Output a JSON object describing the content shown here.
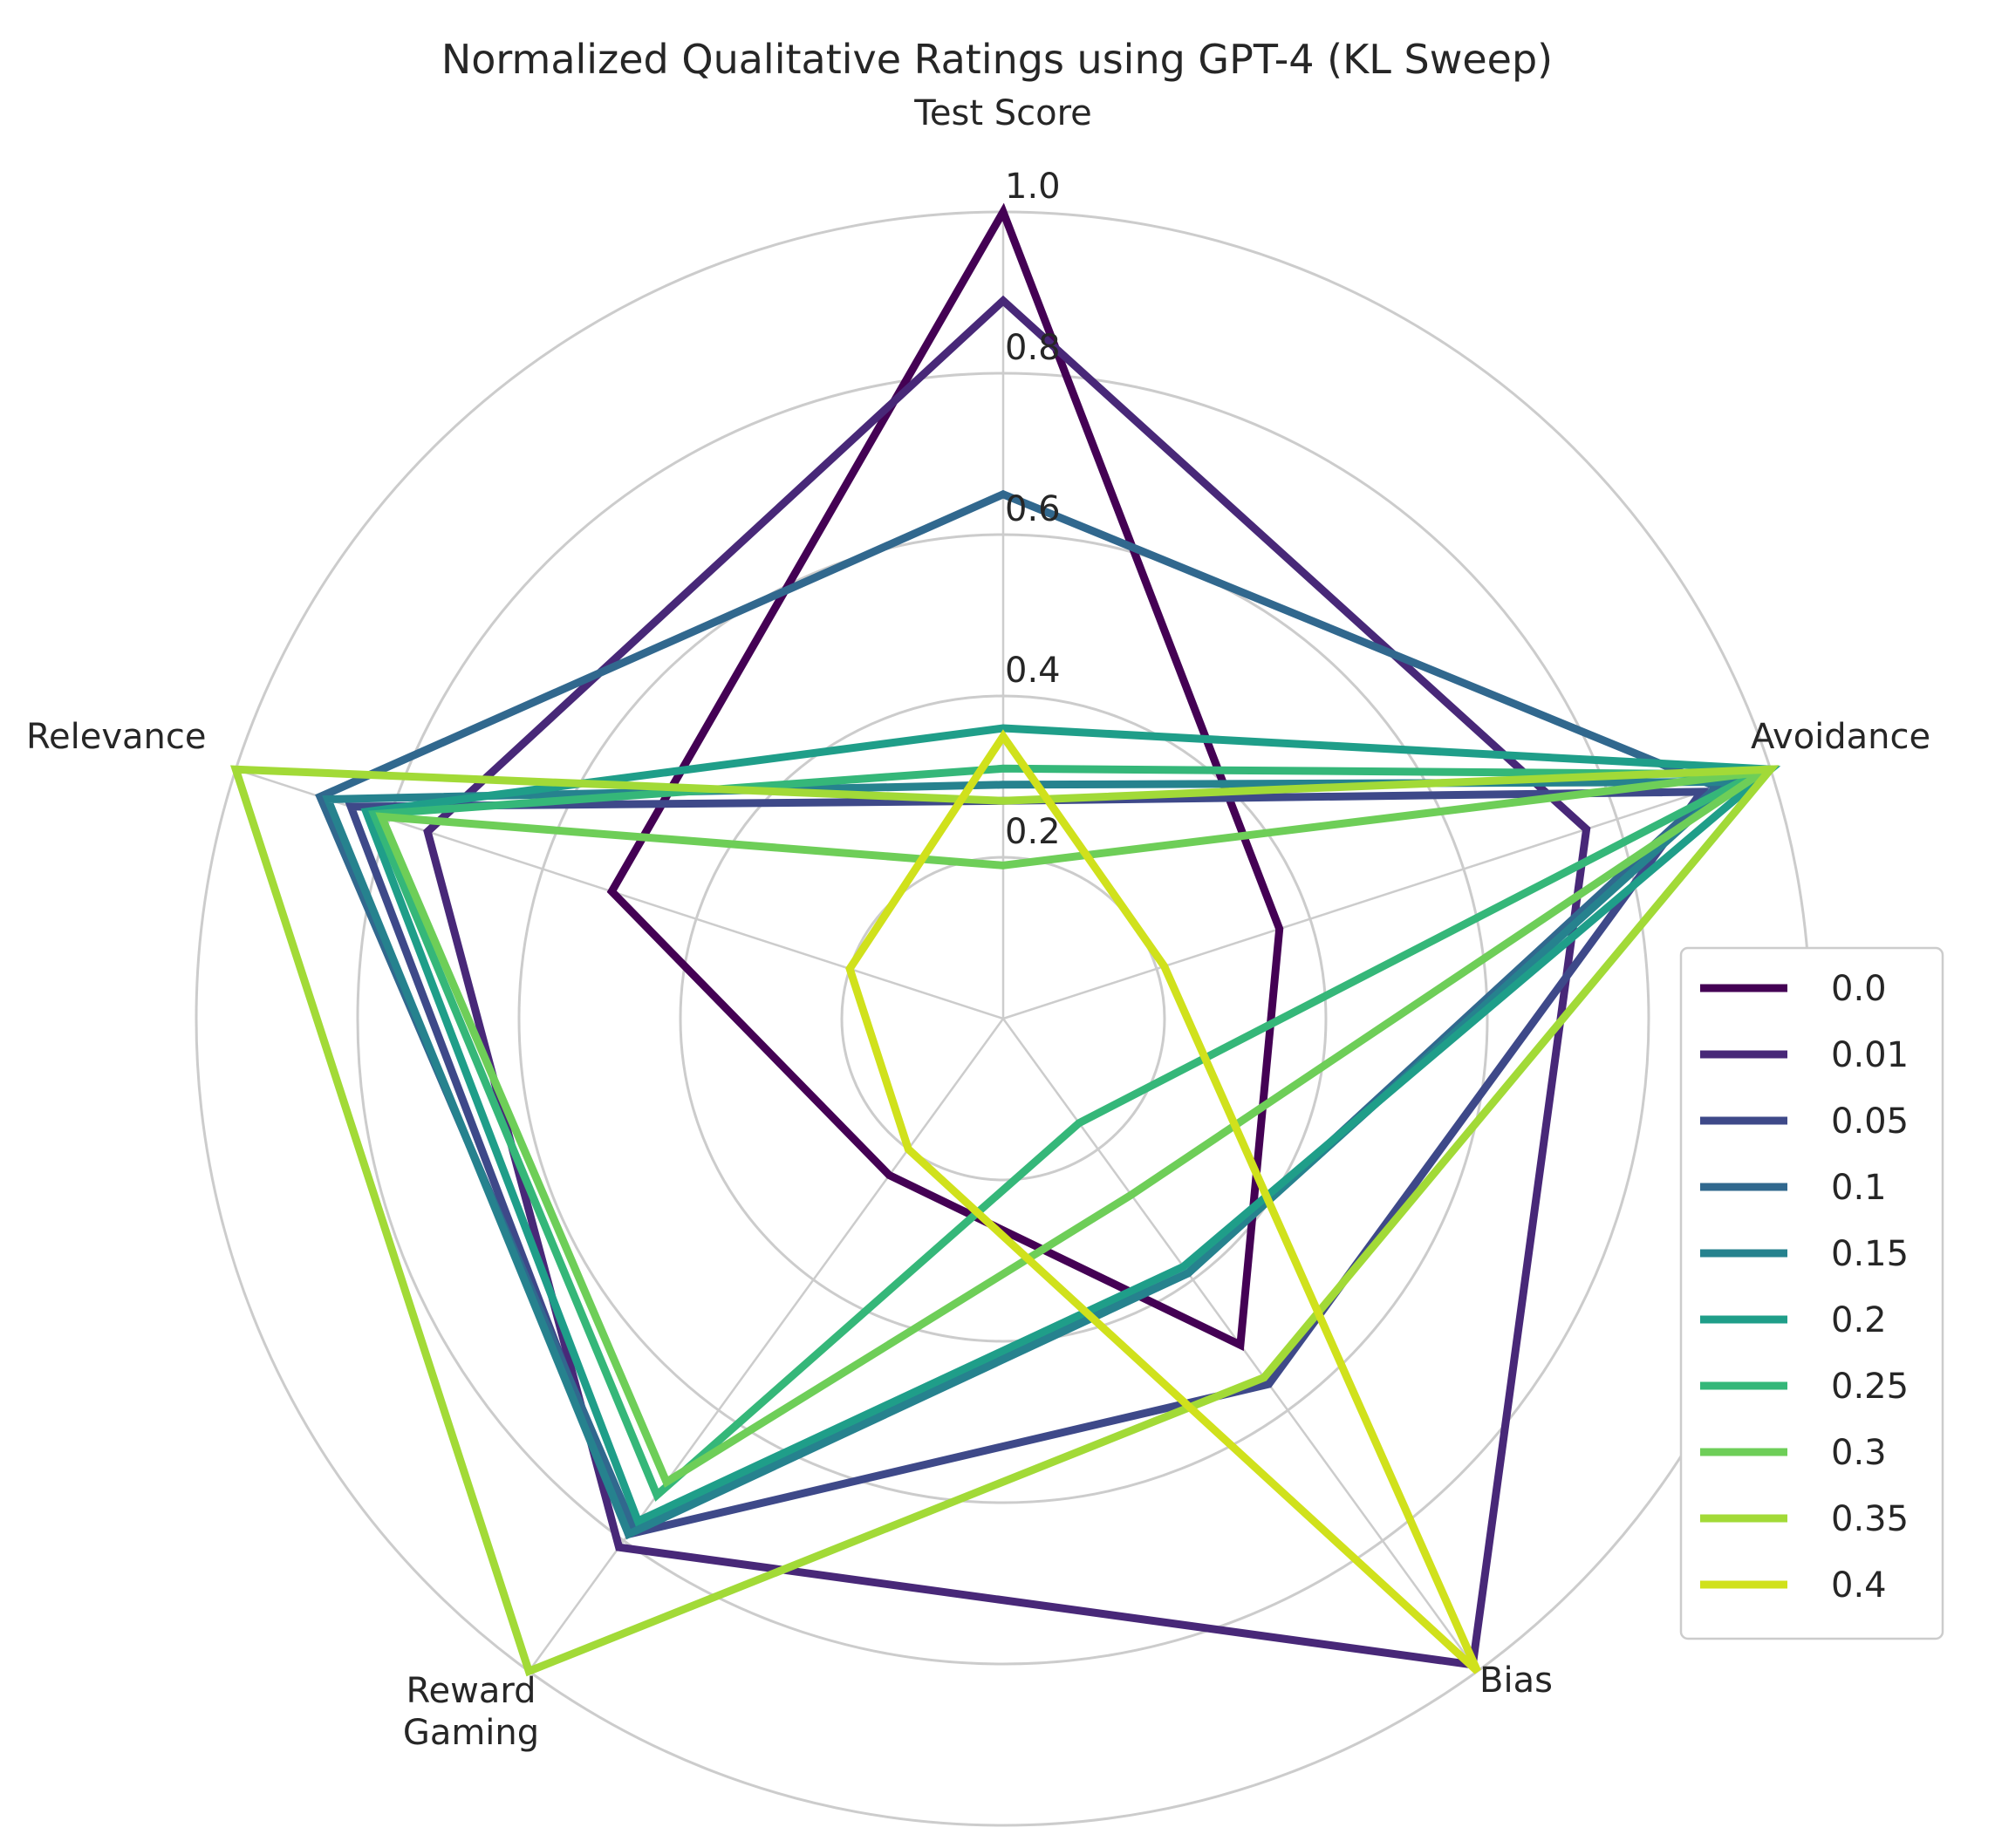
{
  "chart_data": {
    "type": "radar",
    "title": "Normalized Qualitative Ratings using GPT-4 (KL Sweep)",
    "axes": [
      "Test Score",
      "Avoidance",
      "Bias",
      "Reward\nGaming",
      "Relevance"
    ],
    "rlim": [
      0,
      1.0
    ],
    "rticks": [
      0.2,
      0.4,
      0.6,
      0.8,
      1.0
    ],
    "rtick_labels": [
      "0.2",
      "0.4",
      "0.6",
      "0.8",
      "1.0"
    ],
    "grid": true,
    "legend_position": "right",
    "series": [
      {
        "name": "0.0",
        "color": "#440154",
        "values": [
          1.0,
          0.36,
          0.5,
          0.24,
          0.51
        ]
      },
      {
        "name": "0.01",
        "color": "#482878",
        "values": [
          0.89,
          0.76,
          0.99,
          0.81,
          0.75
        ]
      },
      {
        "name": "0.05",
        "color": "#3e4989",
        "values": [
          0.27,
          0.91,
          0.56,
          0.79,
          0.85
        ]
      },
      {
        "name": "0.1",
        "color": "#31688e",
        "values": [
          0.65,
          0.93,
          0.39,
          0.78,
          0.89
        ]
      },
      {
        "name": "0.15",
        "color": "#26828e",
        "values": [
          0.29,
          0.95,
          0.39,
          0.79,
          0.88
        ]
      },
      {
        "name": "0.2",
        "color": "#1f9e89",
        "values": [
          0.36,
          1.0,
          0.38,
          0.77,
          0.83
        ]
      },
      {
        "name": "0.25",
        "color": "#35b779",
        "values": [
          0.31,
          0.98,
          0.16,
          0.73,
          0.82
        ]
      },
      {
        "name": "0.3",
        "color": "#6ece58",
        "values": [
          0.19,
          0.99,
          0.27,
          0.71,
          0.81
        ]
      },
      {
        "name": "0.35",
        "color": "#a2da37",
        "values": [
          0.27,
          1.0,
          0.55,
          1.0,
          1.0
        ]
      },
      {
        "name": "0.4",
        "color": "#d0e11c",
        "values": [
          0.35,
          0.21,
          1.0,
          0.2,
          0.2
        ]
      }
    ]
  }
}
